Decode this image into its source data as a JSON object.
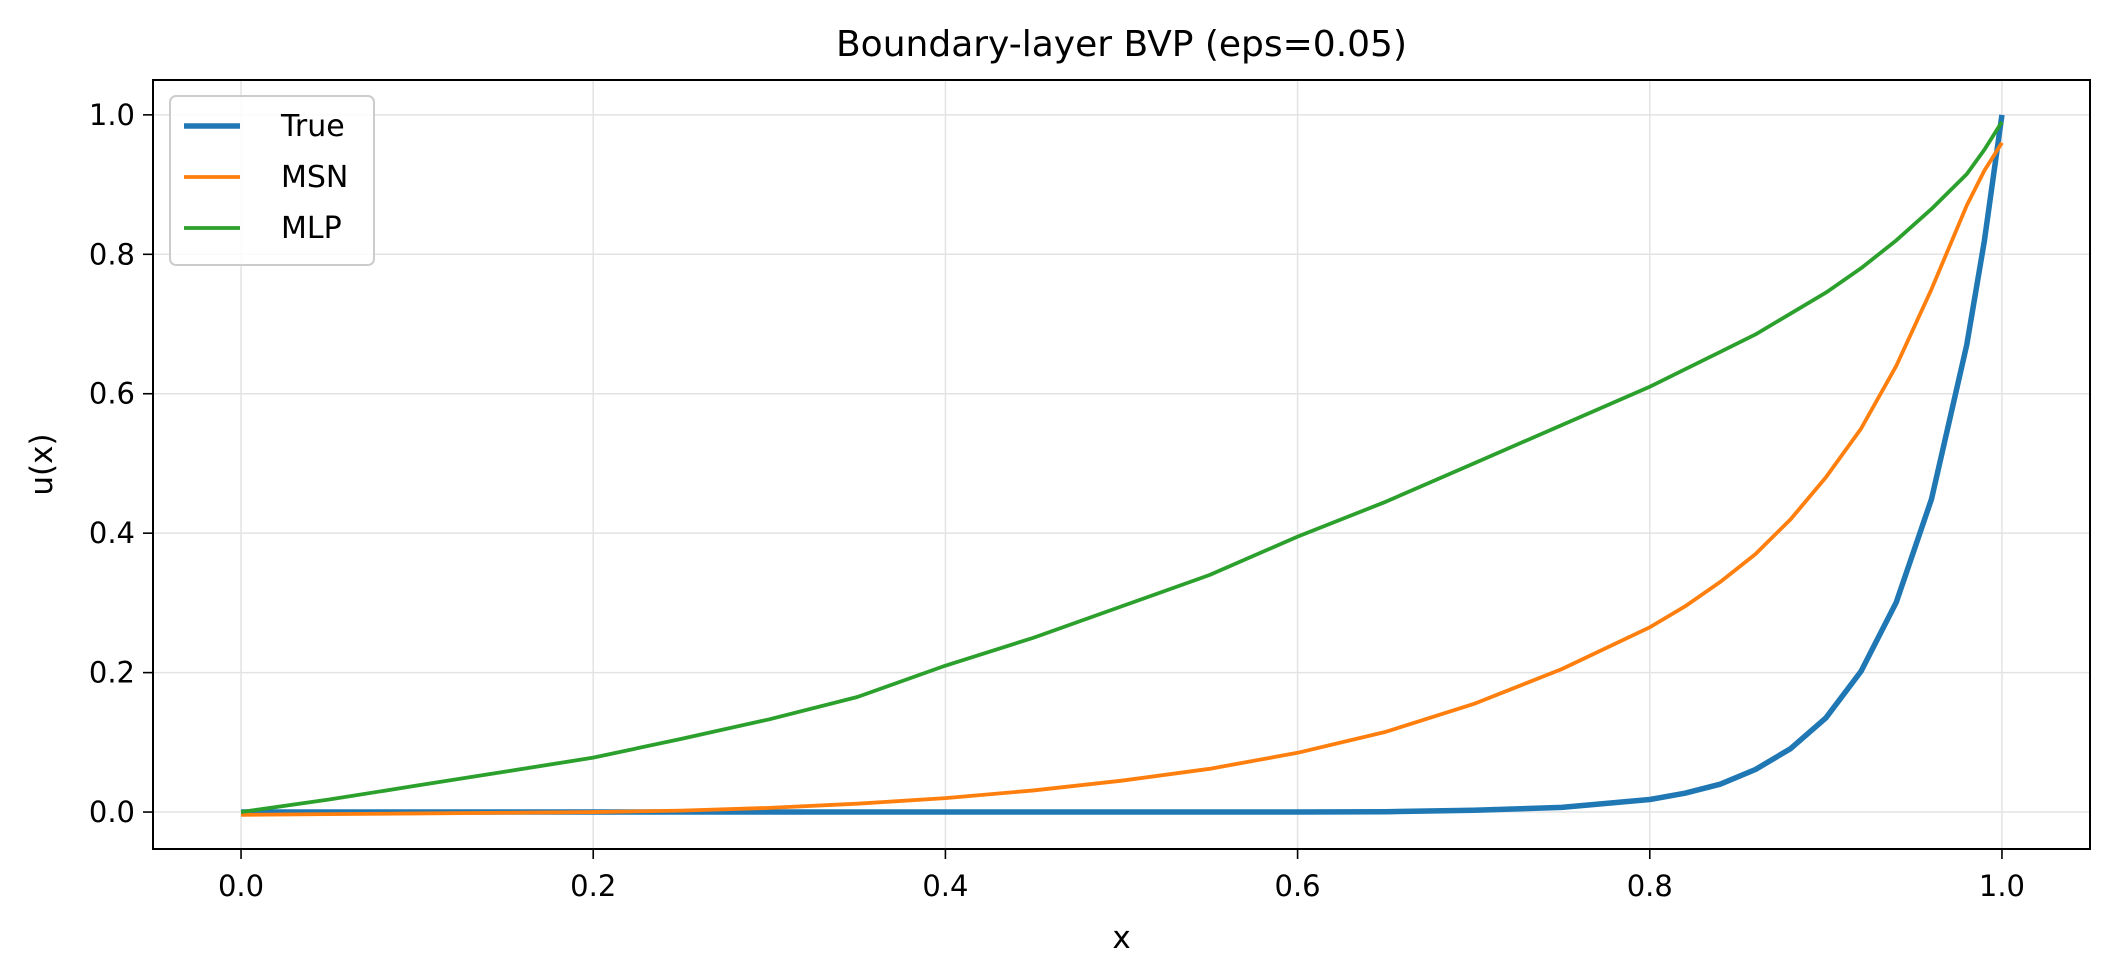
{
  "chart_data": {
    "type": "line",
    "title": "Boundary-layer BVP (eps=0.05)",
    "xlabel": "x",
    "ylabel": "u(x)",
    "xlim": [
      -0.05,
      1.05
    ],
    "ylim": [
      -0.053,
      1.05
    ],
    "xticks": [
      0.0,
      0.2,
      0.4,
      0.6,
      0.8,
      1.0
    ],
    "xtick_labels": [
      "0.0",
      "0.2",
      "0.4",
      "0.6",
      "0.8",
      "1.0"
    ],
    "yticks": [
      0.0,
      0.2,
      0.4,
      0.6,
      0.8,
      1.0
    ],
    "ytick_labels": [
      "0.0",
      "0.2",
      "0.4",
      "0.6",
      "0.8",
      "1.0"
    ],
    "grid": true,
    "legend_position": "upper-left",
    "x": [
      0.0,
      0.05,
      0.1,
      0.15,
      0.2,
      0.25,
      0.3,
      0.35,
      0.4,
      0.45,
      0.5,
      0.55,
      0.6,
      0.65,
      0.7,
      0.75,
      0.8,
      0.82,
      0.84,
      0.86,
      0.88,
      0.9,
      0.92,
      0.94,
      0.96,
      0.98,
      0.99,
      1.0
    ],
    "series": [
      {
        "name": "True",
        "color": "#1f77b4",
        "width": 5.5,
        "values": [
          0.0,
          0.0,
          0.0,
          0.0,
          0.0,
          0.0,
          0.0,
          0.0,
          0.0,
          0.0,
          0.0,
          0.0,
          0.0,
          0.0005,
          0.0025,
          0.0067,
          0.018,
          0.027,
          0.04,
          0.061,
          0.091,
          0.135,
          0.202,
          0.301,
          0.449,
          0.67,
          0.819,
          1.0
        ]
      },
      {
        "name": "MSN",
        "color": "#ff7f0e",
        "width": 3.8,
        "values": [
          -0.004,
          -0.003,
          -0.002,
          -0.001,
          0.0,
          0.002,
          0.006,
          0.012,
          0.02,
          0.031,
          0.045,
          0.062,
          0.085,
          0.115,
          0.155,
          0.205,
          0.265,
          0.295,
          0.33,
          0.37,
          0.42,
          0.48,
          0.55,
          0.64,
          0.75,
          0.87,
          0.92,
          0.96
        ]
      },
      {
        "name": "MLP",
        "color": "#2ca02c",
        "width": 3.8,
        "values": [
          0.0,
          0.018,
          0.038,
          0.058,
          0.078,
          0.105,
          0.133,
          0.165,
          0.21,
          0.25,
          0.295,
          0.34,
          0.395,
          0.445,
          0.5,
          0.555,
          0.61,
          0.635,
          0.66,
          0.685,
          0.715,
          0.745,
          0.78,
          0.82,
          0.865,
          0.915,
          0.95,
          0.99
        ]
      }
    ]
  }
}
